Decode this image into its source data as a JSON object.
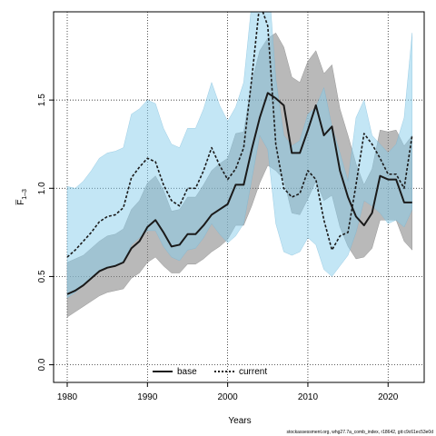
{
  "chart_data": {
    "type": "line",
    "xlabel": "Years",
    "ylabel": "F̅",
    "ylabel_sub": "1–3",
    "xlim": [
      1978.3,
      2024.5
    ],
    "ylim": [
      -0.1,
      2.0
    ],
    "x_ticks": [
      1980,
      1990,
      2000,
      2010,
      2020
    ],
    "y_ticks": [
      0.0,
      0.5,
      1.0,
      1.5
    ],
    "y_tick_labels": [
      "0.0",
      "0.5",
      "1.0",
      "1.5"
    ],
    "grid": true,
    "legend_position": "bottom-center",
    "footer": "stockassessment.org, whg27.7a_comb_index, r18642, git:c9c61ec53e0d",
    "x": [
      1980,
      1981,
      1982,
      1983,
      1984,
      1985,
      1986,
      1987,
      1988,
      1989,
      1990,
      1991,
      1992,
      1993,
      1994,
      1995,
      1996,
      1997,
      1998,
      1999,
      2000,
      2001,
      2002,
      2003,
      2004,
      2005,
      2006,
      2007,
      2008,
      2009,
      2010,
      2011,
      2012,
      2013,
      2014,
      2015,
      2016,
      2017,
      2018,
      2019,
      2020,
      2021,
      2022,
      2023
    ],
    "series": [
      {
        "name": "base",
        "color": "#1a1a1a",
        "band_color": "#808080",
        "values": [
          0.4,
          0.42,
          0.45,
          0.49,
          0.53,
          0.55,
          0.56,
          0.58,
          0.66,
          0.7,
          0.78,
          0.82,
          0.75,
          0.67,
          0.68,
          0.74,
          0.74,
          0.79,
          0.85,
          0.88,
          0.91,
          1.02,
          1.02,
          1.22,
          1.4,
          1.54,
          1.51,
          1.47,
          1.2,
          1.2,
          1.33,
          1.47,
          1.3,
          1.35,
          1.1,
          0.95,
          0.84,
          0.79,
          0.86,
          1.07,
          1.05,
          1.05,
          0.92,
          0.92
        ],
        "lower": [
          0.27,
          0.3,
          0.33,
          0.36,
          0.39,
          0.41,
          0.42,
          0.43,
          0.49,
          0.52,
          0.58,
          0.61,
          0.56,
          0.52,
          0.52,
          0.57,
          0.57,
          0.6,
          0.64,
          0.67,
          0.71,
          0.79,
          0.79,
          0.9,
          1.03,
          1.13,
          1.1,
          1.05,
          0.86,
          0.85,
          0.94,
          1.04,
          0.93,
          0.96,
          0.78,
          0.67,
          0.6,
          0.61,
          0.66,
          0.82,
          0.82,
          0.82,
          0.7,
          0.65
        ],
        "upper": [
          0.58,
          0.6,
          0.62,
          0.66,
          0.7,
          0.73,
          0.74,
          0.77,
          0.88,
          0.93,
          1.03,
          1.07,
          0.99,
          0.87,
          0.88,
          0.95,
          0.95,
          1.02,
          1.1,
          1.14,
          1.17,
          1.31,
          1.32,
          1.6,
          1.78,
          1.85,
          1.88,
          1.8,
          1.63,
          1.6,
          1.72,
          1.78,
          1.65,
          1.7,
          1.45,
          1.3,
          1.14,
          1.02,
          1.11,
          1.33,
          1.32,
          1.33,
          1.24,
          1.3
        ]
      },
      {
        "name": "current",
        "color": "#1a1a1a",
        "line_color_accent": "#2a8fbf",
        "band_color": "#87ceeb",
        "values": [
          0.61,
          0.65,
          0.7,
          0.75,
          0.81,
          0.84,
          0.85,
          0.89,
          1.06,
          1.12,
          1.17,
          1.15,
          1.02,
          0.93,
          0.9,
          1.0,
          1.0,
          1.1,
          1.23,
          1.13,
          1.05,
          1.11,
          1.23,
          1.62,
          2.05,
          1.92,
          1.25,
          1.0,
          0.95,
          0.97,
          1.1,
          1.05,
          0.82,
          0.65,
          0.73,
          0.75,
          1.02,
          1.31,
          1.25,
          1.17,
          1.08,
          1.08,
          1.0,
          1.3
        ],
        "lower": [
          0.38,
          0.41,
          0.45,
          0.49,
          0.53,
          0.55,
          0.56,
          0.58,
          0.68,
          0.72,
          0.76,
          0.76,
          0.67,
          0.61,
          0.59,
          0.65,
          0.66,
          0.72,
          0.8,
          0.74,
          0.69,
          0.73,
          0.8,
          1.05,
          1.3,
          1.22,
          0.8,
          0.64,
          0.62,
          0.64,
          0.72,
          0.68,
          0.54,
          0.5,
          0.56,
          0.62,
          0.75,
          0.93,
          0.9,
          0.86,
          0.8,
          0.82,
          0.78,
          0.88
        ],
        "upper": [
          1.01,
          1.0,
          1.04,
          1.1,
          1.17,
          1.2,
          1.21,
          1.23,
          1.42,
          1.45,
          1.5,
          1.48,
          1.34,
          1.25,
          1.23,
          1.34,
          1.34,
          1.45,
          1.6,
          1.47,
          1.38,
          1.46,
          1.6,
          2.05,
          2.3,
          2.25,
          1.62,
          1.3,
          1.24,
          1.27,
          1.42,
          1.46,
          1.57,
          1.35,
          1.2,
          1.04,
          1.4,
          1.5,
          1.3,
          1.25,
          1.2,
          1.25,
          1.4,
          1.88
        ]
      }
    ]
  }
}
